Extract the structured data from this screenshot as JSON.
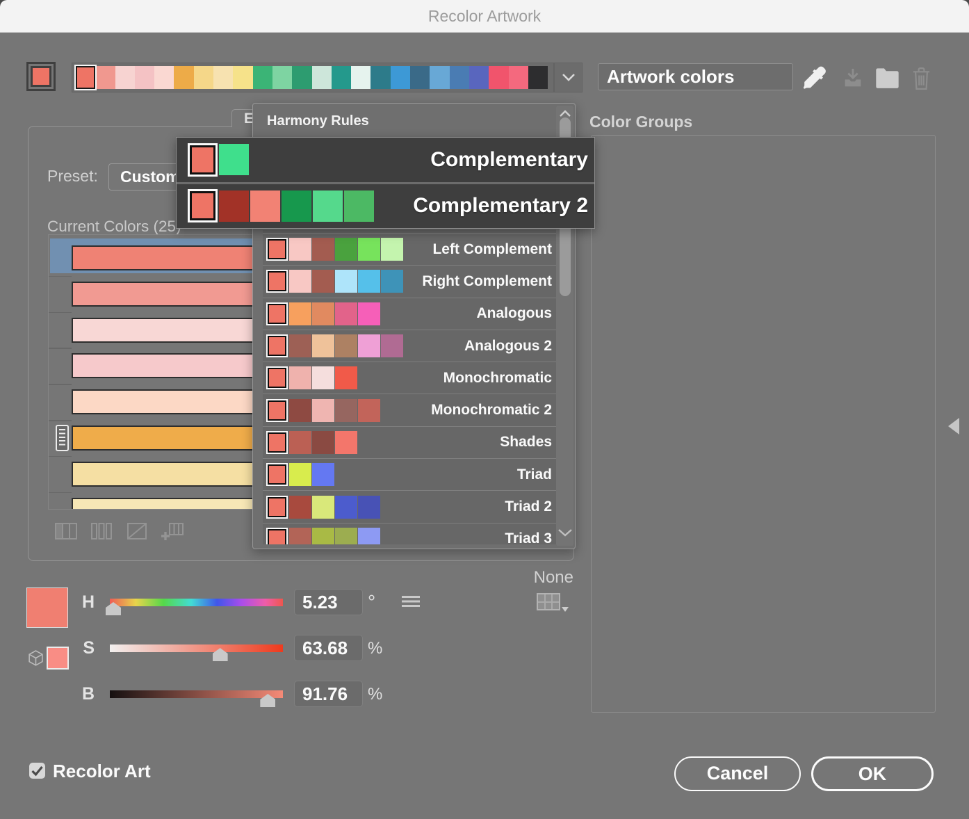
{
  "window": {
    "title": "Recolor Artwork"
  },
  "colors": {
    "background": "#767676",
    "titlebar": "#f3f3f3",
    "base_color": "#ee7465",
    "selection_blue": "#7190b1",
    "overlay_bg": "#3e3e3e"
  },
  "top_bar": {
    "base_swatch_color": "#ee7465",
    "strip_swatches": [
      "#ee7465",
      "#f0988f",
      "#f7d3d1",
      "#f4c2c4",
      "#fad8d2",
      "#edab48",
      "#f5d789",
      "#f7e2b0",
      "#f6e28a",
      "#3bb476",
      "#7ed4a2",
      "#2d9c70",
      "#cde6da",
      "#24998c",
      "#e6f3ee",
      "#2d7b8a",
      "#3d99d6",
      "#3a6a88",
      "#68a8d6",
      "#4a7cb3",
      "#5966be",
      "#f1546c",
      "#f4697e",
      "#2d2d2f"
    ],
    "group_name": "Artwork colors",
    "icons": [
      "eyedropper-icon",
      "save-group-icon",
      "folder-icon",
      "trash-icon"
    ]
  },
  "right_panel": {
    "title": "Color Groups"
  },
  "edit_panel": {
    "tab_label": "E",
    "preset_label": "Preset:",
    "preset_value": "Custom",
    "current_colors_label": "Current Colors (25)",
    "bars": [
      {
        "color": "#ef8274",
        "selected": true
      },
      {
        "color": "#f19a92",
        "selected": false
      },
      {
        "color": "#f8d7d5",
        "selected": false
      },
      {
        "color": "#f6c9cb",
        "selected": false
      },
      {
        "color": "#fcd8c5",
        "selected": false
      },
      {
        "color": "#efac4a",
        "selected": false,
        "handle": true
      },
      {
        "color": "#f5dfa3",
        "selected": false
      },
      {
        "color": "#f7e7b6",
        "selected": false
      }
    ]
  },
  "hsb": {
    "swatch_color": "#f07f71",
    "small_swatch_color": "#f98d85",
    "none_label": "None",
    "rows": [
      {
        "label": "H",
        "value": "5.23",
        "unit": "°",
        "position_pct": 2
      },
      {
        "label": "S",
        "value": "63.68",
        "unit": "%",
        "position_pct": 63.7
      },
      {
        "label": "B",
        "value": "91.76",
        "unit": "%",
        "position_pct": 91.3
      }
    ]
  },
  "harmony": {
    "header": "Harmony Rules",
    "base_color": "#ee7465",
    "highlighted": [
      {
        "label": "Complementary",
        "swatches": [
          "#3fdf8c"
        ]
      },
      {
        "label": "Complementary 2",
        "swatches": [
          "#a23227",
          "#f28274",
          "#17984d",
          "#55d98c",
          "#4cb964"
        ]
      }
    ],
    "items": [
      {
        "label": "Left Complement",
        "swatches": [
          "#f8c8c4",
          "#a35c50",
          "#4aa23e",
          "#77e35c",
          "#c4f4ae"
        ]
      },
      {
        "label": "Right Complement",
        "swatches": [
          "#f8c8c4",
          "#a35c50",
          "#aee4fa",
          "#55c0ea",
          "#3e93b8"
        ]
      },
      {
        "label": "Analogous",
        "swatches": [
          "#f7a05e",
          "#e18a60",
          "#e2638a",
          "#f65fb8"
        ]
      },
      {
        "label": "Analogous 2",
        "swatches": [
          "#9d6055",
          "#efc29a",
          "#ad8163",
          "#efa0d6",
          "#b06b93"
        ]
      },
      {
        "label": "Monochromatic",
        "swatches": [
          "#efb2ad",
          "#f5dedd",
          "#f15a49"
        ]
      },
      {
        "label": "Monochromatic 2",
        "swatches": [
          "#8e4a42",
          "#efb5b1",
          "#966660",
          "#c2645a"
        ]
      },
      {
        "label": "Shades",
        "swatches": [
          "#bb6054",
          "#8a4a42",
          "#f3766b"
        ]
      },
      {
        "label": "Triad",
        "swatches": [
          "#d8ec4d",
          "#6478f2"
        ]
      },
      {
        "label": "Triad 2",
        "swatches": [
          "#a84a3e",
          "#d9e87a",
          "#4c5ccd",
          "#4852b5"
        ]
      },
      {
        "label": "Triad 3",
        "swatches": [
          "#b26457",
          "#a9ba45",
          "#9cad50",
          "#8d9af3"
        ]
      }
    ]
  },
  "footer": {
    "recolor_art_label": "Recolor Art",
    "recolor_art_checked": true,
    "cancel_label": "Cancel",
    "ok_label": "OK"
  }
}
